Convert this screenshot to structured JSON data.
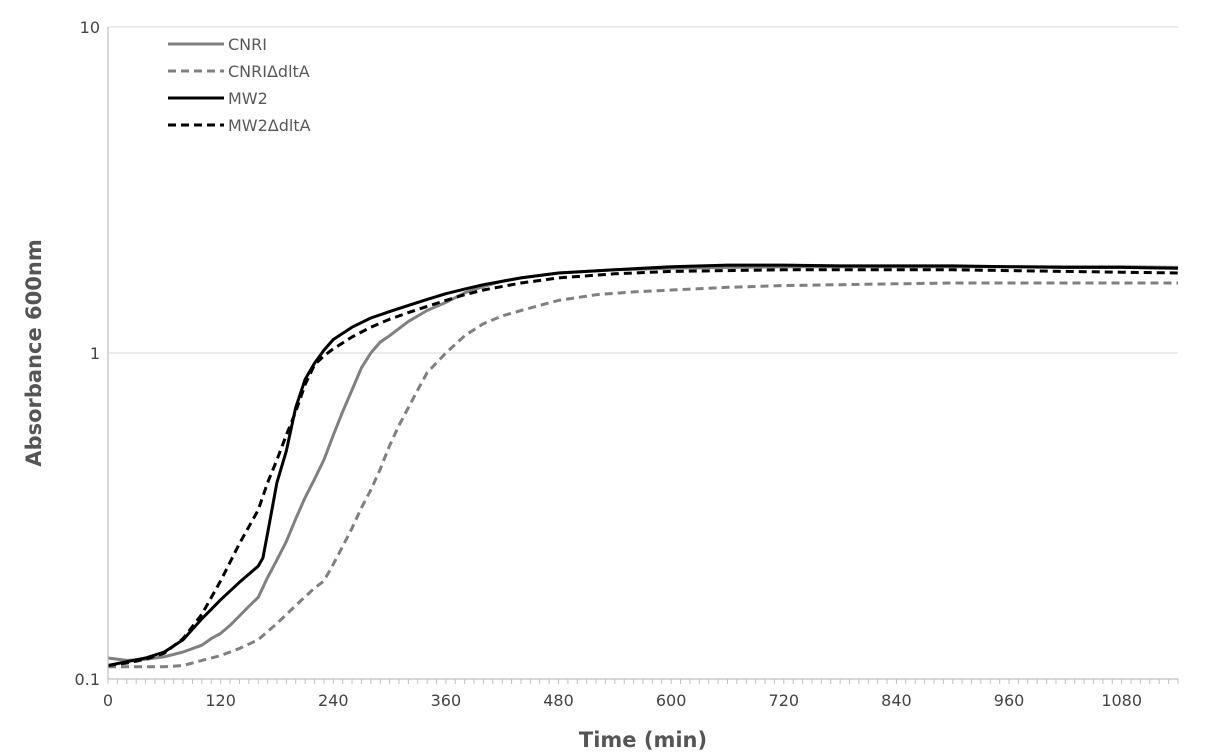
{
  "chart_data": {
    "type": "line",
    "title": "",
    "xlabel": "Time (min)",
    "ylabel": "Absorbance 600nm",
    "xlim": [
      0,
      1140
    ],
    "ylim": [
      0.1,
      10
    ],
    "yscale": "log",
    "x_ticks": [
      0,
      120,
      240,
      360,
      480,
      600,
      720,
      840,
      960,
      1080
    ],
    "y_ticks": [
      0.1,
      1,
      10
    ],
    "y_tick_labels": [
      "0.1",
      "1",
      "10"
    ],
    "x_minor_tick_step": 10,
    "grid": "horizontal major gridlines",
    "legend_position": "top-left",
    "series": [
      {
        "name": "CNRI",
        "color": "#808080",
        "dash": "solid",
        "points": [
          [
            0,
            0.116
          ],
          [
            20,
            0.114
          ],
          [
            40,
            0.115
          ],
          [
            60,
            0.117
          ],
          [
            80,
            0.121
          ],
          [
            100,
            0.127
          ],
          [
            110,
            0.133
          ],
          [
            120,
            0.138
          ],
          [
            130,
            0.146
          ],
          [
            140,
            0.156
          ],
          [
            150,
            0.167
          ],
          [
            160,
            0.178
          ],
          [
            170,
            0.205
          ],
          [
            180,
            0.232
          ],
          [
            190,
            0.264
          ],
          [
            200,
            0.31
          ],
          [
            210,
            0.36
          ],
          [
            220,
            0.41
          ],
          [
            230,
            0.47
          ],
          [
            240,
            0.56
          ],
          [
            250,
            0.66
          ],
          [
            260,
            0.77
          ],
          [
            270,
            0.9
          ],
          [
            280,
            1.0
          ],
          [
            290,
            1.08
          ],
          [
            300,
            1.13
          ],
          [
            320,
            1.25
          ],
          [
            340,
            1.35
          ],
          [
            360,
            1.43
          ],
          [
            380,
            1.53
          ],
          [
            400,
            1.6
          ],
          [
            420,
            1.66
          ],
          [
            440,
            1.7
          ],
          [
            480,
            1.76
          ],
          [
            540,
            1.8
          ],
          [
            600,
            1.82
          ],
          [
            660,
            1.83
          ],
          [
            720,
            1.84
          ],
          [
            780,
            1.84
          ],
          [
            840,
            1.84
          ],
          [
            900,
            1.84
          ],
          [
            960,
            1.84
          ],
          [
            1020,
            1.84
          ],
          [
            1080,
            1.84
          ],
          [
            1140,
            1.83
          ]
        ]
      },
      {
        "name": "CNRIΔdltA",
        "color": "#808080",
        "dash": "dashed",
        "points": [
          [
            0,
            0.109
          ],
          [
            20,
            0.109
          ],
          [
            40,
            0.109
          ],
          [
            60,
            0.109
          ],
          [
            80,
            0.11
          ],
          [
            100,
            0.114
          ],
          [
            120,
            0.118
          ],
          [
            140,
            0.124
          ],
          [
            160,
            0.132
          ],
          [
            180,
            0.148
          ],
          [
            200,
            0.168
          ],
          [
            220,
            0.19
          ],
          [
            230,
            0.2
          ],
          [
            240,
            0.225
          ],
          [
            250,
            0.255
          ],
          [
            260,
            0.29
          ],
          [
            270,
            0.335
          ],
          [
            280,
            0.38
          ],
          [
            290,
            0.44
          ],
          [
            300,
            0.52
          ],
          [
            310,
            0.6
          ],
          [
            320,
            0.68
          ],
          [
            330,
            0.77
          ],
          [
            340,
            0.87
          ],
          [
            360,
            1.0
          ],
          [
            380,
            1.13
          ],
          [
            400,
            1.23
          ],
          [
            420,
            1.3
          ],
          [
            440,
            1.35
          ],
          [
            460,
            1.4
          ],
          [
            480,
            1.45
          ],
          [
            520,
            1.51
          ],
          [
            560,
            1.54
          ],
          [
            600,
            1.56
          ],
          [
            660,
            1.59
          ],
          [
            720,
            1.61
          ],
          [
            780,
            1.62
          ],
          [
            840,
            1.63
          ],
          [
            900,
            1.64
          ],
          [
            960,
            1.64
          ],
          [
            1020,
            1.64
          ],
          [
            1080,
            1.64
          ],
          [
            1140,
            1.64
          ]
        ]
      },
      {
        "name": "MW2",
        "color": "#000000",
        "dash": "solid",
        "points": [
          [
            0,
            0.11
          ],
          [
            20,
            0.113
          ],
          [
            40,
            0.116
          ],
          [
            60,
            0.121
          ],
          [
            80,
            0.132
          ],
          [
            100,
            0.153
          ],
          [
            120,
            0.175
          ],
          [
            140,
            0.198
          ],
          [
            160,
            0.222
          ],
          [
            165,
            0.235
          ],
          [
            170,
            0.28
          ],
          [
            180,
            0.4
          ],
          [
            190,
            0.5
          ],
          [
            200,
            0.68
          ],
          [
            210,
            0.83
          ],
          [
            220,
            0.93
          ],
          [
            230,
            1.02
          ],
          [
            240,
            1.1
          ],
          [
            260,
            1.2
          ],
          [
            280,
            1.28
          ],
          [
            300,
            1.34
          ],
          [
            320,
            1.4
          ],
          [
            340,
            1.46
          ],
          [
            360,
            1.52
          ],
          [
            380,
            1.57
          ],
          [
            400,
            1.62
          ],
          [
            440,
            1.7
          ],
          [
            480,
            1.76
          ],
          [
            540,
            1.8
          ],
          [
            600,
            1.84
          ],
          [
            660,
            1.86
          ],
          [
            720,
            1.86
          ],
          [
            780,
            1.85
          ],
          [
            840,
            1.85
          ],
          [
            900,
            1.85
          ],
          [
            960,
            1.84
          ],
          [
            1020,
            1.83
          ],
          [
            1080,
            1.83
          ],
          [
            1140,
            1.82
          ]
        ]
      },
      {
        "name": "MW2ΔdltA",
        "color": "#000000",
        "dash": "dashed",
        "points": [
          [
            0,
            0.11
          ],
          [
            20,
            0.112
          ],
          [
            40,
            0.115
          ],
          [
            60,
            0.12
          ],
          [
            80,
            0.133
          ],
          [
            100,
            0.158
          ],
          [
            120,
            0.2
          ],
          [
            140,
            0.26
          ],
          [
            160,
            0.33
          ],
          [
            170,
            0.4
          ],
          [
            180,
            0.47
          ],
          [
            190,
            0.56
          ],
          [
            200,
            0.66
          ],
          [
            210,
            0.8
          ],
          [
            220,
            0.92
          ],
          [
            230,
            0.98
          ],
          [
            240,
            1.03
          ],
          [
            260,
            1.12
          ],
          [
            280,
            1.2
          ],
          [
            300,
            1.27
          ],
          [
            320,
            1.33
          ],
          [
            340,
            1.39
          ],
          [
            360,
            1.45
          ],
          [
            380,
            1.51
          ],
          [
            400,
            1.56
          ],
          [
            440,
            1.64
          ],
          [
            480,
            1.7
          ],
          [
            540,
            1.75
          ],
          [
            600,
            1.78
          ],
          [
            660,
            1.79
          ],
          [
            720,
            1.8
          ],
          [
            780,
            1.8
          ],
          [
            840,
            1.8
          ],
          [
            900,
            1.8
          ],
          [
            960,
            1.79
          ],
          [
            1020,
            1.78
          ],
          [
            1080,
            1.77
          ],
          [
            1140,
            1.76
          ]
        ]
      }
    ]
  }
}
